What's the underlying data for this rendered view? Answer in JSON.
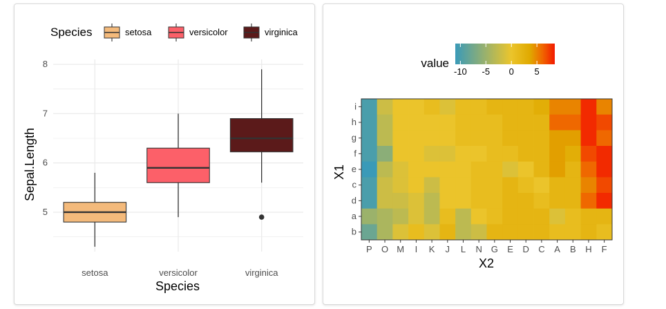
{
  "chart_data": [
    {
      "type": "box",
      "title": "",
      "xlabel": "Species",
      "ylabel": "Sepal.Length",
      "ylim": [
        4.2,
        8.1
      ],
      "yticks": [
        "5",
        "6",
        "7",
        "8"
      ],
      "legend": {
        "title": "Species",
        "position": "top",
        "entries": [
          "setosa",
          "versicolor",
          "virginica"
        ]
      },
      "categories": [
        "setosa",
        "versicolor",
        "virginica"
      ],
      "colors": [
        "#F4BA7B",
        "#FC6069",
        "#5B1A1A"
      ],
      "boxes": [
        {
          "name": "setosa",
          "min": 4.3,
          "q1": 4.8,
          "median": 5.0,
          "q3": 5.2,
          "max": 5.8,
          "outliers": []
        },
        {
          "name": "versicolor",
          "min": 4.9,
          "q1": 5.6,
          "median": 5.9,
          "q3": 6.3,
          "max": 7.0,
          "outliers": []
        },
        {
          "name": "virginica",
          "min": 5.6,
          "q1": 6.225,
          "median": 6.5,
          "q3": 6.9,
          "max": 7.9,
          "outliers": [
            4.9
          ]
        }
      ]
    },
    {
      "type": "heatmap",
      "title": "",
      "xlabel": "X2",
      "ylabel": "X1",
      "legend": {
        "title": "value",
        "position": "top",
        "ticks": [
          "-10",
          "-5",
          "0",
          "5"
        ],
        "range": [
          -11,
          8.5
        ]
      },
      "x": [
        "P",
        "O",
        "M",
        "I",
        "K",
        "J",
        "L",
        "N",
        "G",
        "E",
        "D",
        "C",
        "A",
        "B",
        "H",
        "F"
      ],
      "y": [
        "i",
        "h",
        "g",
        "f",
        "e",
        "c",
        "d",
        "a",
        "b"
      ],
      "values": [
        [
          -10,
          -2,
          0,
          0,
          1,
          -1,
          1,
          1,
          2,
          2,
          2,
          3,
          5,
          5,
          8,
          5
        ],
        [
          -10,
          -3,
          0,
          0,
          0,
          0,
          1,
          1,
          1,
          2,
          2,
          2,
          6,
          6,
          8,
          7
        ],
        [
          -10,
          -3,
          0,
          0,
          0,
          0,
          1,
          1,
          1,
          2,
          2,
          2,
          4,
          4,
          8,
          6
        ],
        [
          -10,
          -6,
          0,
          0,
          -1,
          -1,
          0,
          0,
          1,
          1,
          2,
          2,
          4,
          3,
          7,
          8
        ],
        [
          -11,
          -3,
          -1,
          0,
          0,
          0,
          0,
          1,
          1,
          -1,
          0,
          2,
          4,
          2,
          6,
          8
        ],
        [
          -10,
          -2,
          -1,
          0,
          -2,
          0,
          0,
          1,
          1,
          2,
          1,
          0,
          2,
          2,
          5,
          7
        ],
        [
          -10,
          -2,
          -2,
          -1,
          -3,
          0,
          0,
          1,
          1,
          2,
          2,
          1,
          2,
          2,
          6,
          8
        ],
        [
          -5,
          -4,
          -3,
          -1,
          -3,
          1,
          -3,
          0,
          1,
          2,
          2,
          2,
          -1,
          1,
          2,
          2
        ],
        [
          -8,
          -4,
          -1,
          1,
          -1,
          2,
          -3,
          -2,
          2,
          2,
          2,
          2,
          1,
          1,
          2,
          1
        ]
      ]
    }
  ]
}
